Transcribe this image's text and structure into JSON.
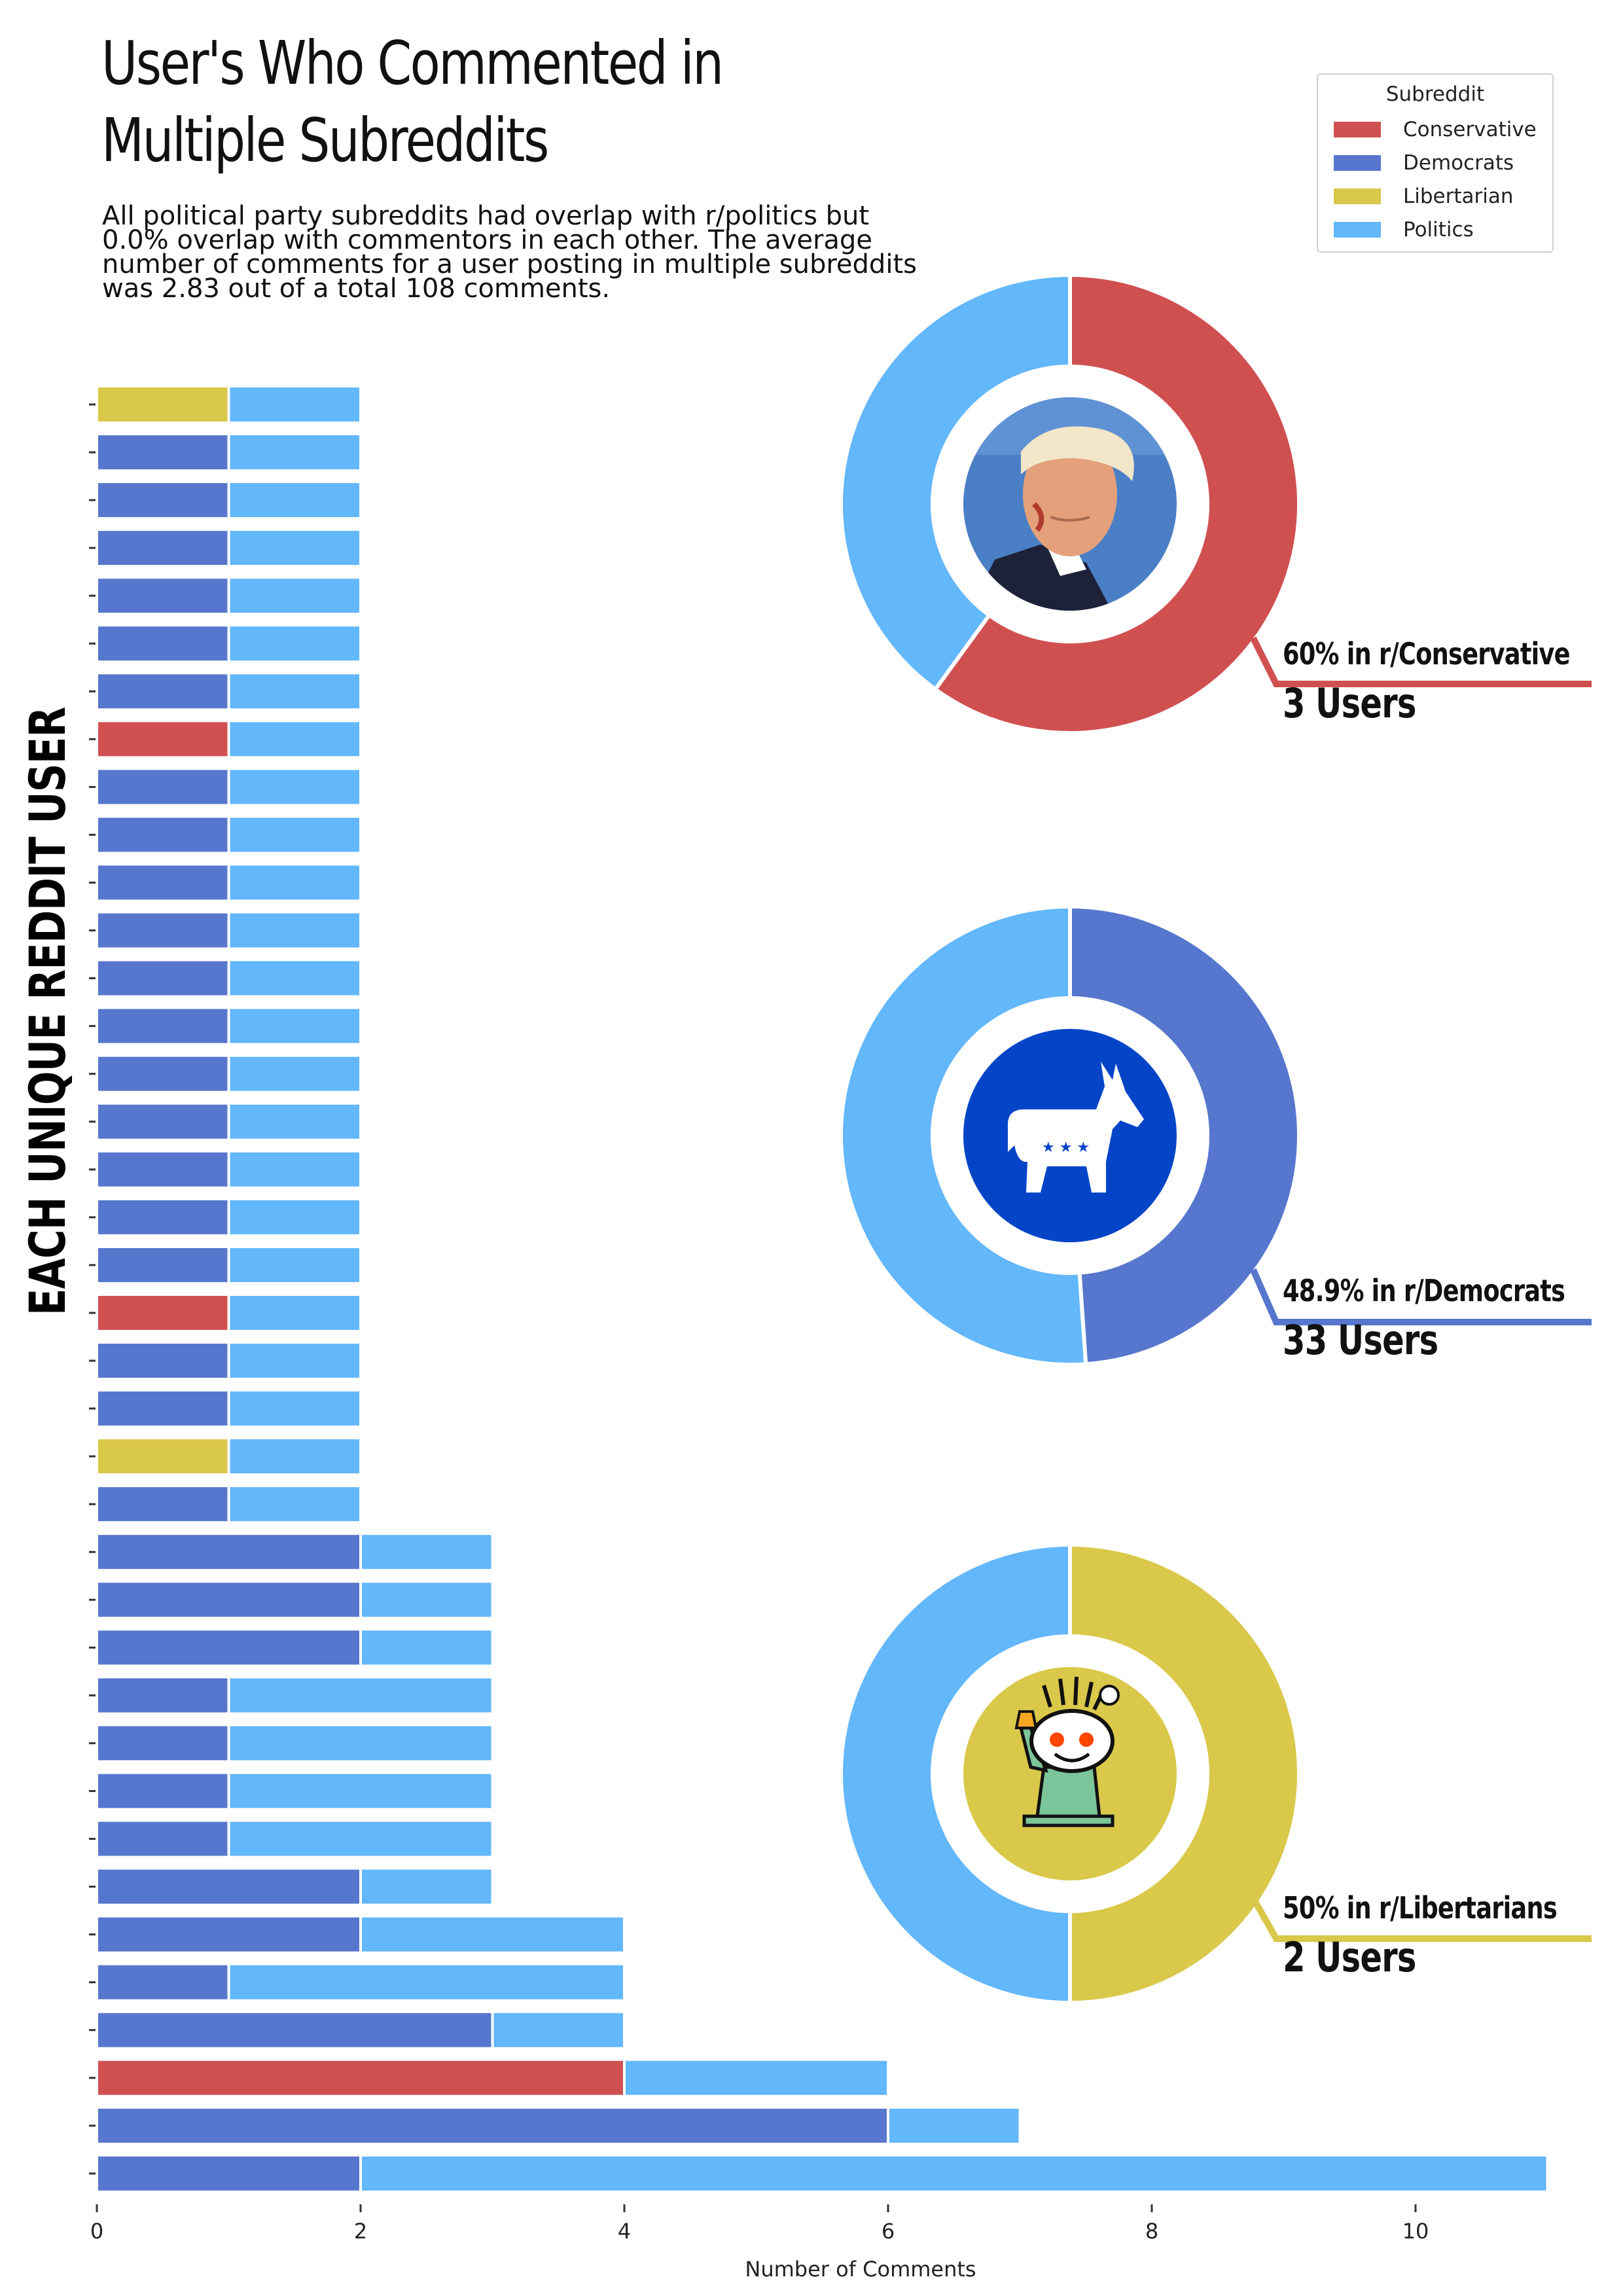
{
  "title": "User's Who Commented in\nMultiple Subreddits",
  "subtitle": "All political party subreddits had overlap with r/politics but 0.0% overlap with commentors in each other. The average number of comments for a user posting in multiple subreddits was 2.83 out of a total 108 comments.",
  "y_axis_label": "EACH UNIQUE REDDIT USER",
  "legend": {
    "title": "Subreddit",
    "items": [
      {
        "label": "Conservative",
        "color": "#d05050"
      },
      {
        "label": "Democrats",
        "color": "#5677cd"
      },
      {
        "label": "Libertarian",
        "color": "#d9c84a"
      },
      {
        "label": "Politics",
        "color": "#63b7fb"
      }
    ]
  },
  "callouts": [
    {
      "pct_label": "60% in r/Conservative",
      "users_label": "3 Users",
      "color": "#d05050"
    },
    {
      "pct_label": "48.9% in r/Democrats",
      "users_label": "33 Users",
      "color": "#5677cd"
    },
    {
      "pct_label": "50% in r/Libertarians",
      "users_label": "2 Users",
      "color": "#d9c84a"
    }
  ],
  "chart_data": [
    {
      "type": "bar",
      "orientation": "horizontal",
      "stacked": true,
      "xlabel": "Number of Comments",
      "ylabel": "EACH UNIQUE REDDIT USER",
      "xlim": [
        0,
        11
      ],
      "xticks": [
        0,
        2,
        4,
        6,
        8,
        10
      ],
      "grid": false,
      "legend_position": "top-right",
      "rows_top_to_bottom": [
        {
          "party": "Libertarian",
          "party_comments": 1,
          "politics_comments": 1
        },
        {
          "party": "Democrats",
          "party_comments": 1,
          "politics_comments": 1
        },
        {
          "party": "Democrats",
          "party_comments": 1,
          "politics_comments": 1
        },
        {
          "party": "Democrats",
          "party_comments": 1,
          "politics_comments": 1
        },
        {
          "party": "Democrats",
          "party_comments": 1,
          "politics_comments": 1
        },
        {
          "party": "Democrats",
          "party_comments": 1,
          "politics_comments": 1
        },
        {
          "party": "Democrats",
          "party_comments": 1,
          "politics_comments": 1
        },
        {
          "party": "Conservative",
          "party_comments": 1,
          "politics_comments": 1
        },
        {
          "party": "Democrats",
          "party_comments": 1,
          "politics_comments": 1
        },
        {
          "party": "Democrats",
          "party_comments": 1,
          "politics_comments": 1
        },
        {
          "party": "Democrats",
          "party_comments": 1,
          "politics_comments": 1
        },
        {
          "party": "Democrats",
          "party_comments": 1,
          "politics_comments": 1
        },
        {
          "party": "Democrats",
          "party_comments": 1,
          "politics_comments": 1
        },
        {
          "party": "Democrats",
          "party_comments": 1,
          "politics_comments": 1
        },
        {
          "party": "Democrats",
          "party_comments": 1,
          "politics_comments": 1
        },
        {
          "party": "Democrats",
          "party_comments": 1,
          "politics_comments": 1
        },
        {
          "party": "Democrats",
          "party_comments": 1,
          "politics_comments": 1
        },
        {
          "party": "Democrats",
          "party_comments": 1,
          "politics_comments": 1
        },
        {
          "party": "Democrats",
          "party_comments": 1,
          "politics_comments": 1
        },
        {
          "party": "Conservative",
          "party_comments": 1,
          "politics_comments": 1
        },
        {
          "party": "Democrats",
          "party_comments": 1,
          "politics_comments": 1
        },
        {
          "party": "Democrats",
          "party_comments": 1,
          "politics_comments": 1
        },
        {
          "party": "Libertarian",
          "party_comments": 1,
          "politics_comments": 1
        },
        {
          "party": "Democrats",
          "party_comments": 1,
          "politics_comments": 1
        },
        {
          "party": "Democrats",
          "party_comments": 2,
          "politics_comments": 1
        },
        {
          "party": "Democrats",
          "party_comments": 2,
          "politics_comments": 1
        },
        {
          "party": "Democrats",
          "party_comments": 2,
          "politics_comments": 1
        },
        {
          "party": "Democrats",
          "party_comments": 1,
          "politics_comments": 2
        },
        {
          "party": "Democrats",
          "party_comments": 1,
          "politics_comments": 2
        },
        {
          "party": "Democrats",
          "party_comments": 1,
          "politics_comments": 2
        },
        {
          "party": "Democrats",
          "party_comments": 1,
          "politics_comments": 2
        },
        {
          "party": "Democrats",
          "party_comments": 2,
          "politics_comments": 1
        },
        {
          "party": "Democrats",
          "party_comments": 2,
          "politics_comments": 2
        },
        {
          "party": "Democrats",
          "party_comments": 1,
          "politics_comments": 3
        },
        {
          "party": "Democrats",
          "party_comments": 3,
          "politics_comments": 1
        },
        {
          "party": "Conservative",
          "party_comments": 4,
          "politics_comments": 2
        },
        {
          "party": "Democrats",
          "party_comments": 6,
          "politics_comments": 1
        },
        {
          "party": "Democrats",
          "party_comments": 2,
          "politics_comments": 9
        }
      ]
    },
    {
      "type": "pie",
      "donut": true,
      "subreddit": "Conservative",
      "slices": [
        {
          "label": "Conservative",
          "value": 60,
          "color": "#d05050"
        },
        {
          "label": "Politics",
          "value": 40,
          "color": "#63b7fb"
        }
      ],
      "center_image": "politician-portrait"
    },
    {
      "type": "pie",
      "donut": true,
      "subreddit": "Democrats",
      "slices": [
        {
          "label": "Democrats",
          "value": 48.9,
          "color": "#5677cd"
        },
        {
          "label": "Politics",
          "value": 51.1,
          "color": "#63b7fb"
        }
      ],
      "center_image": "donkey-logo"
    },
    {
      "type": "pie",
      "donut": true,
      "subreddit": "Libertarian",
      "slices": [
        {
          "label": "Libertarian",
          "value": 50,
          "color": "#d9c84a"
        },
        {
          "label": "Politics",
          "value": 50,
          "color": "#63b7fb"
        }
      ],
      "center_image": "liberty-snoo-logo"
    }
  ]
}
